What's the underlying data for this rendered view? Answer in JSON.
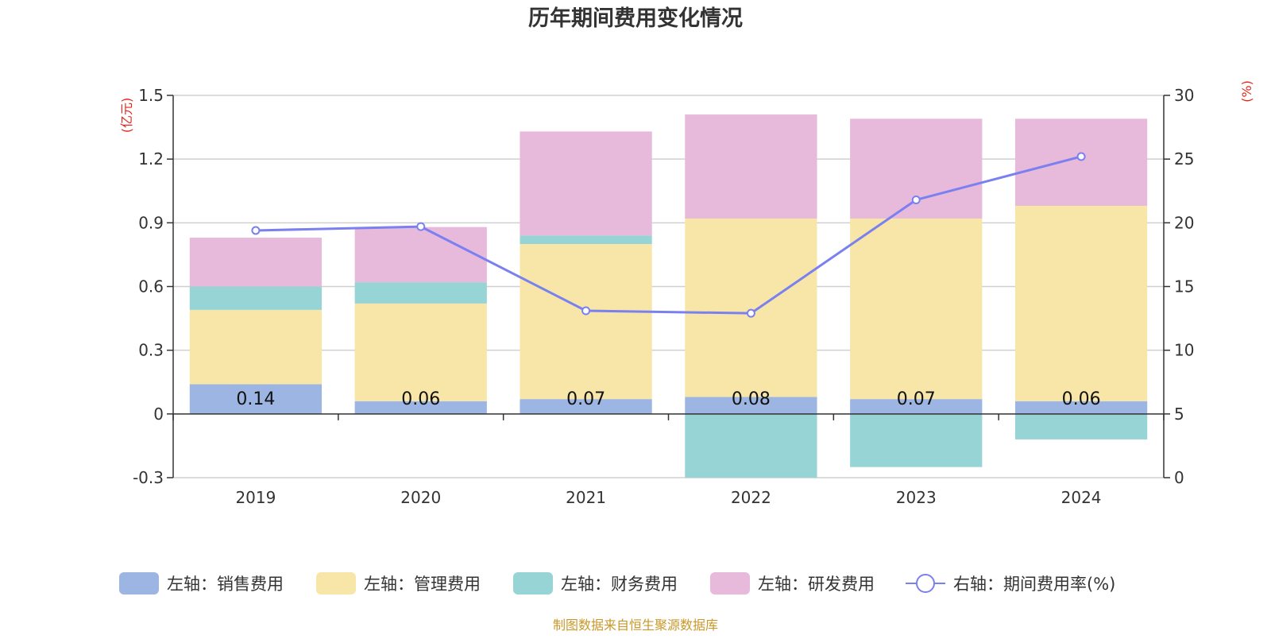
{
  "chart_data": {
    "type": "bar",
    "title": "历年期间费用变化情况",
    "categories": [
      "2019",
      "2020",
      "2021",
      "2022",
      "2023",
      "2024"
    ],
    "y_left": {
      "unit": "(亿元)",
      "min": -0.3,
      "max": 1.5,
      "ticks": [
        -0.3,
        0,
        0.3,
        0.6,
        0.9,
        1.2,
        1.5
      ],
      "tick_labels": [
        "-0.3",
        "0",
        "0.3",
        "0.6",
        "0.9",
        "1.2",
        "1.5"
      ]
    },
    "y_right": {
      "unit": "(%)",
      "min": 0,
      "max": 30,
      "ticks": [
        0,
        5,
        10,
        15,
        20,
        25,
        30
      ],
      "tick_labels": [
        "0",
        "5",
        "10",
        "15",
        "20",
        "25",
        "30"
      ]
    },
    "grid": true,
    "series": [
      {
        "name": "左轴：销售费用",
        "type": "bar",
        "stack": "left",
        "color": "#9db5e2",
        "values": [
          0.14,
          0.06,
          0.07,
          0.08,
          0.07,
          0.06
        ],
        "labels": [
          "0.14",
          "0.06",
          "0.07",
          "0.08",
          "0.07",
          "0.06"
        ]
      },
      {
        "name": "左轴：管理费用",
        "type": "bar",
        "stack": "left",
        "color": "#f7e6a7",
        "values": [
          0.35,
          0.46,
          0.73,
          0.84,
          0.85,
          0.92
        ]
      },
      {
        "name": "左轴：财务费用",
        "type": "bar",
        "stack": "left",
        "color": "#97d4d5",
        "values": [
          0.11,
          0.1,
          0.04,
          -0.3,
          -0.25,
          -0.12
        ]
      },
      {
        "name": "左轴：研发费用",
        "type": "bar",
        "stack": "left",
        "color": "#e7b9da",
        "values": [
          0.23,
          0.26,
          0.49,
          0.49,
          0.47,
          0.41
        ]
      },
      {
        "name": "右轴：期间费用率(%)",
        "type": "line",
        "axis": "right",
        "color": "#7b80f0",
        "values": [
          19.4,
          19.7,
          13.1,
          12.9,
          21.8,
          25.2
        ]
      }
    ],
    "legend_position": "bottom",
    "source_note": "制图数据来自恒生聚源数据库"
  }
}
